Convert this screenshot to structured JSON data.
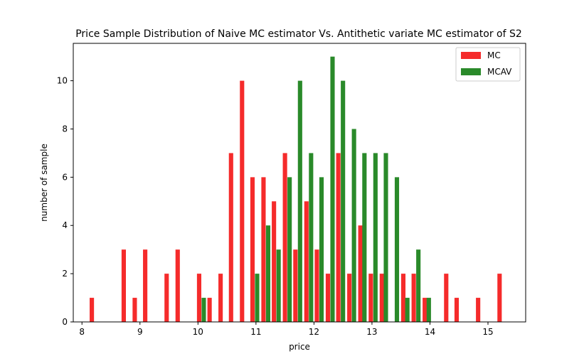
{
  "chart_data": {
    "type": "bar",
    "title": "Price Sample Distribution of Naive MC estimator Vs. Antithetic variate MC estimator of S2",
    "xlabel": "price",
    "ylabel": "number of sample",
    "xlim": [
      7.85,
      15.65
    ],
    "ylim": [
      0,
      11.55
    ],
    "xticks": [
      8,
      9,
      10,
      11,
      12,
      13,
      14,
      15
    ],
    "yticks": [
      0,
      2,
      4,
      6,
      8,
      10
    ],
    "bar_width": 0.075,
    "legend_position": "top-right",
    "grid": false,
    "series": [
      {
        "name": "MC",
        "color": "#f52b2b",
        "points": [
          {
            "x": 8.17,
            "y": 1
          },
          {
            "x": 8.72,
            "y": 3
          },
          {
            "x": 8.91,
            "y": 1
          },
          {
            "x": 9.09,
            "y": 3
          },
          {
            "x": 9.46,
            "y": 2
          },
          {
            "x": 9.65,
            "y": 3
          },
          {
            "x": 10.02,
            "y": 2
          },
          {
            "x": 10.2,
            "y": 1
          },
          {
            "x": 10.39,
            "y": 2
          },
          {
            "x": 10.57,
            "y": 7
          },
          {
            "x": 10.76,
            "y": 10
          },
          {
            "x": 10.94,
            "y": 6
          },
          {
            "x": 11.13,
            "y": 6
          },
          {
            "x": 11.31,
            "y": 5
          },
          {
            "x": 11.5,
            "y": 7
          },
          {
            "x": 11.68,
            "y": 3
          },
          {
            "x": 11.87,
            "y": 5
          },
          {
            "x": 12.05,
            "y": 3
          },
          {
            "x": 12.24,
            "y": 2
          },
          {
            "x": 12.42,
            "y": 7
          },
          {
            "x": 12.61,
            "y": 2
          },
          {
            "x": 12.8,
            "y": 4
          },
          {
            "x": 12.98,
            "y": 2
          },
          {
            "x": 13.17,
            "y": 2
          },
          {
            "x": 13.54,
            "y": 2
          },
          {
            "x": 13.72,
            "y": 2
          },
          {
            "x": 13.91,
            "y": 1
          },
          {
            "x": 14.28,
            "y": 2
          },
          {
            "x": 14.46,
            "y": 1
          },
          {
            "x": 14.83,
            "y": 1
          },
          {
            "x": 15.2,
            "y": 2
          }
        ]
      },
      {
        "name": "MCAV",
        "color": "#2a8a2a",
        "points": [
          {
            "x": 10.1,
            "y": 1
          },
          {
            "x": 11.02,
            "y": 2
          },
          {
            "x": 11.21,
            "y": 4
          },
          {
            "x": 11.39,
            "y": 3
          },
          {
            "x": 11.58,
            "y": 6
          },
          {
            "x": 11.76,
            "y": 10
          },
          {
            "x": 11.95,
            "y": 7
          },
          {
            "x": 12.13,
            "y": 6
          },
          {
            "x": 12.32,
            "y": 11
          },
          {
            "x": 12.5,
            "y": 10
          },
          {
            "x": 12.69,
            "y": 8
          },
          {
            "x": 12.87,
            "y": 7
          },
          {
            "x": 13.06,
            "y": 7
          },
          {
            "x": 13.24,
            "y": 7
          },
          {
            "x": 13.43,
            "y": 6
          },
          {
            "x": 13.61,
            "y": 1
          },
          {
            "x": 13.8,
            "y": 3
          },
          {
            "x": 13.98,
            "y": 1
          }
        ]
      }
    ]
  }
}
